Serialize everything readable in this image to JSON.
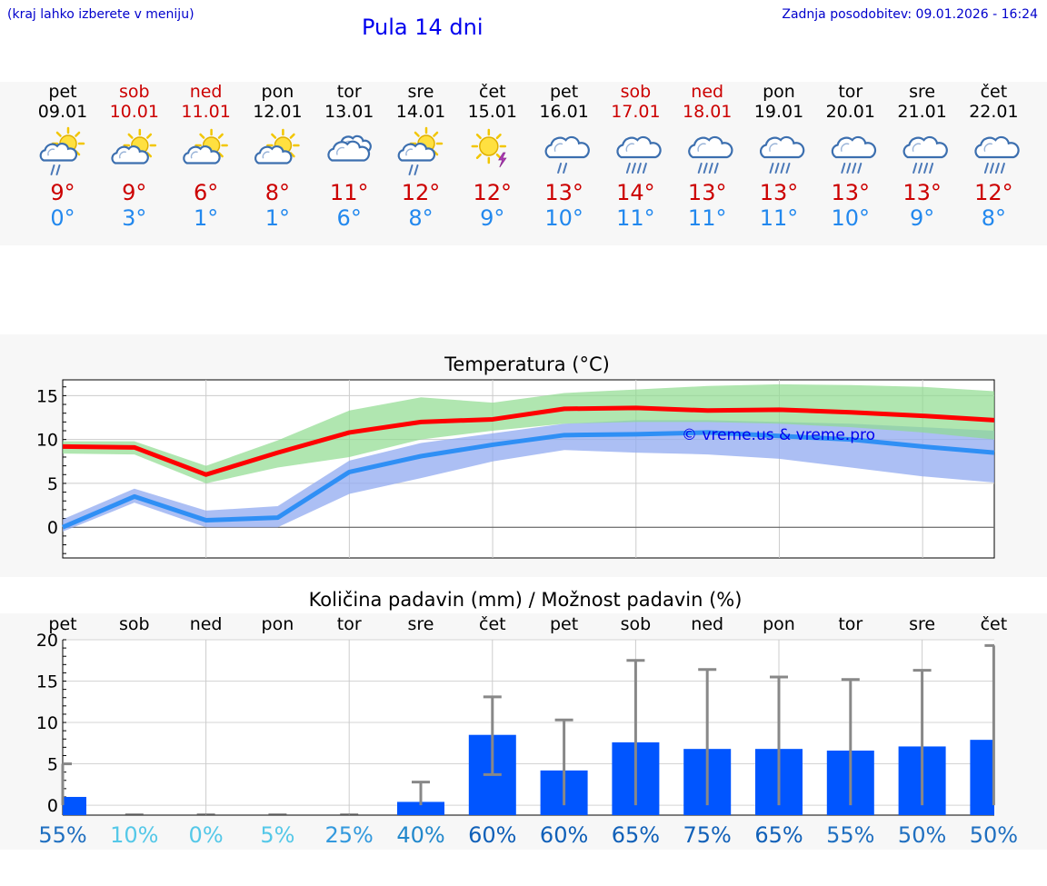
{
  "header": {
    "hint": "(kraj lahko izberete v meniju)",
    "title": "Pula 14 dni",
    "updated": "Zadnja posodobitev: 09.01.2026 - 16:24"
  },
  "colors": {
    "weekday": "#000000",
    "weekend": "#cc0000",
    "max_temp": "#cc0000",
    "min_temp": "#2288ee",
    "max_line": "#ff0000",
    "min_line": "#2f8ff5",
    "max_band": "#8fdc8f",
    "min_band": "#90aaf0",
    "bar": "#0055ff",
    "whisker": "#888888"
  },
  "forecast": {
    "days": [
      {
        "day": "pet",
        "date": "09.01",
        "weekend": false,
        "icon": "sun-cloud-rain-icon",
        "max": "9°",
        "min": "0°"
      },
      {
        "day": "sob",
        "date": "10.01",
        "weekend": true,
        "icon": "sun-cloud-icon",
        "max": "9°",
        "min": "3°"
      },
      {
        "day": "ned",
        "date": "11.01",
        "weekend": true,
        "icon": "sun-cloud-icon",
        "max": "6°",
        "min": "1°"
      },
      {
        "day": "pon",
        "date": "12.01",
        "weekend": false,
        "icon": "sun-cloud-icon",
        "max": "8°",
        "min": "1°"
      },
      {
        "day": "tor",
        "date": "13.01",
        "weekend": false,
        "icon": "cloudy-icon",
        "max": "11°",
        "min": "6°"
      },
      {
        "day": "sre",
        "date": "14.01",
        "weekend": false,
        "icon": "sun-cloud-rain-icon",
        "max": "12°",
        "min": "8°"
      },
      {
        "day": "čet",
        "date": "15.01",
        "weekend": false,
        "icon": "sun-cloud-thunder-icon",
        "max": "12°",
        "min": "9°"
      },
      {
        "day": "pet",
        "date": "16.01",
        "weekend": false,
        "icon": "cloud-rain-icon",
        "max": "13°",
        "min": "10°"
      },
      {
        "day": "sob",
        "date": "17.01",
        "weekend": true,
        "icon": "cloud-heavy-rain-icon",
        "max": "14°",
        "min": "11°"
      },
      {
        "day": "ned",
        "date": "18.01",
        "weekend": true,
        "icon": "cloud-heavy-rain-icon",
        "max": "13°",
        "min": "11°"
      },
      {
        "day": "pon",
        "date": "19.01",
        "weekend": false,
        "icon": "cloud-heavy-rain-icon",
        "max": "13°",
        "min": "11°"
      },
      {
        "day": "tor",
        "date": "20.01",
        "weekend": false,
        "icon": "cloud-heavy-rain-icon",
        "max": "13°",
        "min": "10°"
      },
      {
        "day": "sre",
        "date": "21.01",
        "weekend": false,
        "icon": "cloud-heavy-rain-icon",
        "max": "13°",
        "min": "9°"
      },
      {
        "day": "čet",
        "date": "22.01",
        "weekend": false,
        "icon": "cloud-heavy-rain-icon",
        "max": "12°",
        "min": "8°"
      }
    ]
  },
  "chart_data": [
    {
      "type": "line",
      "title": "Temperatura (°C)",
      "watermark": "© vreme.us & vreme.pro",
      "xlabel": "",
      "ylabel": "",
      "ylim": [
        -3.5,
        16.8
      ],
      "yticks": [
        0,
        5,
        10,
        15
      ],
      "categories": [
        "pet",
        "sob",
        "ned",
        "pon",
        "tor",
        "sre",
        "čet",
        "pet",
        "sob",
        "ned",
        "pon",
        "tor",
        "sre",
        "čet"
      ],
      "series": [
        {
          "name": "max",
          "values": [
            9.2,
            9.1,
            6.0,
            8.5,
            10.8,
            12.0,
            12.3,
            13.5,
            13.6,
            13.3,
            13.4,
            13.1,
            12.7,
            12.2
          ],
          "band_low": [
            8.4,
            8.3,
            5.0,
            6.8,
            8.0,
            10.0,
            11.0,
            11.8,
            12.0,
            12.0,
            11.8,
            11.4,
            10.8,
            10.0
          ],
          "band_high": [
            9.8,
            9.8,
            7.0,
            9.9,
            13.3,
            14.8,
            14.2,
            15.3,
            15.7,
            16.1,
            16.3,
            16.2,
            16.0,
            15.5
          ]
        },
        {
          "name": "min",
          "values": [
            0.0,
            3.5,
            0.8,
            1.1,
            6.3,
            8.1,
            9.4,
            10.5,
            10.6,
            10.8,
            10.4,
            10.0,
            9.2,
            8.5
          ],
          "band_low": [
            -0.5,
            2.8,
            0.0,
            0.0,
            3.8,
            5.6,
            7.5,
            8.8,
            8.5,
            8.3,
            7.8,
            6.8,
            5.8,
            5.1
          ],
          "band_high": [
            0.9,
            4.4,
            1.9,
            2.4,
            7.6,
            9.6,
            10.7,
            11.8,
            12.2,
            12.2,
            12.0,
            11.8,
            11.4,
            11.0
          ]
        }
      ]
    },
    {
      "type": "bar",
      "title": "Količina padavin (mm) / Možnost padavin (%)",
      "xlabel": "",
      "ylabel": "",
      "ylim": [
        -1.2,
        20
      ],
      "yticks": [
        0,
        5,
        10,
        15,
        20
      ],
      "categories": [
        "pet",
        "sob",
        "ned",
        "pon",
        "tor",
        "sre",
        "čet",
        "pet",
        "sob",
        "ned",
        "pon",
        "tor",
        "sre",
        "čet"
      ],
      "values": [
        1.0,
        0.0,
        0.0,
        0.0,
        0.0,
        0.4,
        8.5,
        4.2,
        7.6,
        6.8,
        6.8,
        6.6,
        7.1,
        7.9
      ],
      "error_high": [
        5.0,
        0.0,
        0.0,
        0.0,
        0.0,
        2.8,
        13.1,
        10.3,
        17.5,
        16.4,
        15.5,
        15.2,
        16.3,
        19.3
      ],
      "error_low": [
        0.0,
        0.0,
        0.0,
        0.0,
        0.0,
        0.0,
        3.7,
        0.0,
        0.0,
        0.0,
        0.0,
        0.0,
        0.0,
        0.0
      ],
      "probability": [
        "55%",
        "10%",
        "0%",
        "5%",
        "25%",
        "40%",
        "60%",
        "60%",
        "65%",
        "75%",
        "65%",
        "55%",
        "50%",
        "50%"
      ]
    }
  ]
}
